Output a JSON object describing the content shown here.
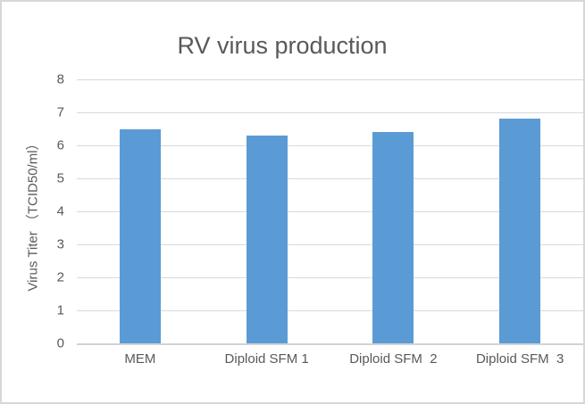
{
  "window": {
    "background_color": "#FFFFFF",
    "border_color": "#D7D7D7"
  },
  "chart_data": {
    "type": "bar",
    "title": "RV virus production",
    "categories": [
      "MEM",
      "Diploid SFM 1",
      "Diploid SFM  2",
      "Diploid SFM  3"
    ],
    "values": [
      6.5,
      6.3,
      6.4,
      6.8
    ],
    "xlabel": "",
    "ylabel": "Virus Titer （TCID50/ml）",
    "ylim": [
      0,
      8
    ],
    "yticks": [
      0,
      1,
      2,
      3,
      4,
      5,
      6,
      7,
      8
    ],
    "grid": true,
    "legend": "none",
    "bar_color": "#5B9BD5",
    "gridline_color": "#D9D9D9",
    "axis_line_color": "#D2D2D2",
    "text_color": "#595959"
  }
}
